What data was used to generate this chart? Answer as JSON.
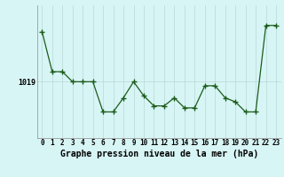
{
  "x": [
    0,
    1,
    2,
    3,
    4,
    5,
    6,
    7,
    8,
    9,
    10,
    11,
    12,
    13,
    14,
    15,
    16,
    17,
    18,
    19,
    20,
    21,
    22,
    23
  ],
  "y": [
    1021.5,
    1019.5,
    1019.5,
    1019.0,
    1019.0,
    1019.0,
    1017.5,
    1017.5,
    1018.2,
    1019.0,
    1018.3,
    1017.8,
    1017.8,
    1018.2,
    1017.7,
    1017.7,
    1018.8,
    1018.8,
    1018.2,
    1018.0,
    1017.5,
    1017.5,
    1021.8,
    1021.8
  ],
  "line_color": "#1a5c1a",
  "marker": "+",
  "marker_size": 4,
  "background_color": "#d8f5f5",
  "grid_color": "#b8d8d8",
  "xlabel_label": "Graphe pression niveau de la mer (hPa)",
  "ytick_value": 1019,
  "xlim": [
    -0.5,
    23.5
  ],
  "ylim": [
    1016.2,
    1022.8
  ],
  "axis_label_fontsize": 7,
  "tick_fontsize": 5.5
}
